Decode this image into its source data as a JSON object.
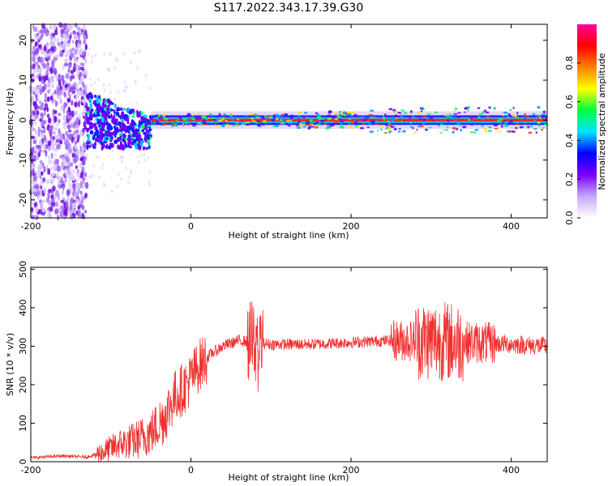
{
  "chart_data": [
    {
      "type": "heatmap",
      "title": "S117.2022.343.17.39.G30",
      "xlabel": "Height of straight line (km)",
      "ylabel": "Frequency (Hz)",
      "xlim": [
        -200,
        445
      ],
      "ylim": [
        -24.5,
        24
      ],
      "xticks": [
        -200,
        0,
        200,
        400
      ],
      "yticks": [
        20,
        10,
        0,
        -10,
        -20
      ],
      "colorbar": {
        "label": "Normalized spectral amplitude",
        "range": [
          0,
          1
        ],
        "ticks": [
          0.0,
          0.2,
          0.4,
          0.6,
          0.8
        ],
        "colors": [
          "#ffffff",
          "#c8a8ff",
          "#7a00ff",
          "#0000ff",
          "#00e5ff",
          "#00ff40",
          "#ffff00",
          "#ff8000",
          "#ff0000",
          "#ff00a0"
        ]
      },
      "description_points": {
        "noisy_region_x": [
          -200,
          -130
        ],
        "transition_region_x": [
          -130,
          -50
        ],
        "carrier_band_x": [
          -50,
          445
        ],
        "carrier_frequency": 0
      }
    },
    {
      "type": "line",
      "xlabel": "Height of straight line (km)",
      "ylabel": "SNR (10 * v/v)",
      "xlim": [
        -200,
        445
      ],
      "ylim": [
        0,
        505
      ],
      "xticks": [
        -200,
        0,
        200,
        400
      ],
      "yticks": [
        0,
        100,
        200,
        300,
        400,
        500
      ],
      "line_color": "#f03030",
      "envelope": [
        {
          "x": -200,
          "y": 10
        },
        {
          "x": -160,
          "y": 15
        },
        {
          "x": -130,
          "y": 12
        },
        {
          "x": -110,
          "y": 25
        },
        {
          "x": -90,
          "y": 45
        },
        {
          "x": -70,
          "y": 55
        },
        {
          "x": -50,
          "y": 75
        },
        {
          "x": -35,
          "y": 110
        },
        {
          "x": -20,
          "y": 170
        },
        {
          "x": -5,
          "y": 200
        },
        {
          "x": 10,
          "y": 250
        },
        {
          "x": 25,
          "y": 280
        },
        {
          "x": 40,
          "y": 300
        },
        {
          "x": 60,
          "y": 315
        },
        {
          "x": 100,
          "y": 305
        },
        {
          "x": 150,
          "y": 305
        },
        {
          "x": 200,
          "y": 310
        },
        {
          "x": 250,
          "y": 315
        },
        {
          "x": 300,
          "y": 315
        },
        {
          "x": 350,
          "y": 310
        },
        {
          "x": 400,
          "y": 305
        },
        {
          "x": 445,
          "y": 300
        }
      ]
    }
  ]
}
